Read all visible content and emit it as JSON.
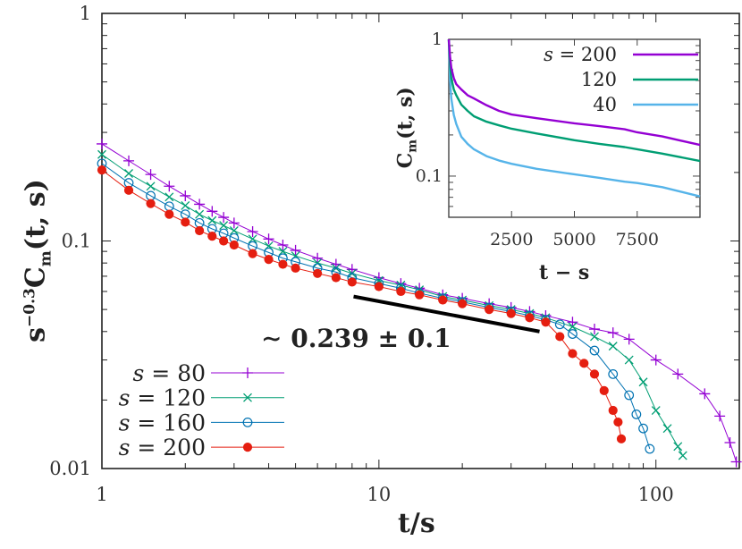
{
  "chart_data": [
    {
      "type": "scatter",
      "xlabel": "t/s",
      "ylabel_base": "s",
      "ylabel_exp": "−0.3",
      "ylabel_main": "C",
      "ylabel_sub": "m",
      "ylabel_args": "(t, s)",
      "x_scale": "log",
      "y_scale": "log",
      "xlim": [
        1,
        200
      ],
      "ylim": [
        0.01,
        1
      ],
      "x_ticks": [
        "1",
        "10",
        "100"
      ],
      "y_ticks": [
        "0.01",
        "0.1",
        "1"
      ],
      "legend_position": "bottom-left",
      "annotation": "∼ 0.239 ± 0.1",
      "fit_line": {
        "x": [
          8.1,
          38
        ],
        "y": [
          0.057,
          0.04
        ],
        "color": "#000000"
      },
      "series": [
        {
          "name": "s = 80",
          "label_var": "s",
          "label_val": "80",
          "color": "#9400D3",
          "marker": "plus",
          "x": [
            1,
            1.25,
            1.5,
            1.75,
            2,
            2.25,
            2.5,
            2.75,
            3,
            3.5,
            4,
            4.5,
            5,
            6,
            7,
            8,
            10,
            12,
            14,
            17,
            20,
            25,
            30,
            35,
            40,
            50,
            60,
            70,
            80,
            100,
            120,
            150,
            170,
            185,
            195
          ],
          "y": [
            0.267,
            0.225,
            0.196,
            0.174,
            0.158,
            0.145,
            0.135,
            0.127,
            0.12,
            0.11,
            0.102,
            0.096,
            0.091,
            0.084,
            0.079,
            0.075,
            0.069,
            0.065,
            0.062,
            0.058,
            0.056,
            0.053,
            0.051,
            0.049,
            0.047,
            0.044,
            0.041,
            0.0395,
            0.037,
            0.03,
            0.026,
            0.0213,
            0.017,
            0.013,
            0.0107
          ]
        },
        {
          "name": "s = 120",
          "label_var": "s",
          "label_val": "120",
          "color": "#009E73",
          "marker": "cross",
          "x": [
            1,
            1.25,
            1.5,
            1.75,
            2,
            2.25,
            2.5,
            2.75,
            3,
            3.5,
            4,
            4.5,
            5,
            6,
            7,
            8,
            10,
            12,
            14,
            17,
            20,
            25,
            30,
            35,
            40,
            50,
            60,
            70,
            80,
            90,
            100,
            110,
            120,
            125
          ],
          "y": [
            0.24,
            0.198,
            0.174,
            0.156,
            0.143,
            0.131,
            0.123,
            0.117,
            0.111,
            0.102,
            0.095,
            0.09,
            0.086,
            0.08,
            0.076,
            0.072,
            0.067,
            0.064,
            0.061,
            0.057,
            0.055,
            0.052,
            0.05,
            0.048,
            0.046,
            0.042,
            0.038,
            0.0345,
            0.03,
            0.024,
            0.018,
            0.015,
            0.0125,
            0.0114
          ]
        },
        {
          "name": "s = 160",
          "label_var": "s",
          "label_val": "160",
          "color": "#0072B2",
          "marker": "circle",
          "x": [
            1,
            1.25,
            1.5,
            1.75,
            2,
            2.25,
            2.5,
            2.75,
            3,
            3.5,
            4,
            4.5,
            5,
            6,
            7,
            8,
            10,
            12,
            14,
            17,
            20,
            25,
            30,
            35,
            40,
            45,
            50,
            60,
            70,
            80,
            85,
            90,
            95
          ],
          "y": [
            0.219,
            0.18,
            0.158,
            0.142,
            0.131,
            0.12,
            0.113,
            0.108,
            0.103,
            0.095,
            0.089,
            0.084,
            0.081,
            0.076,
            0.073,
            0.069,
            0.065,
            0.062,
            0.059,
            0.056,
            0.054,
            0.051,
            0.049,
            0.047,
            0.045,
            0.043,
            0.039,
            0.033,
            0.026,
            0.021,
            0.0173,
            0.015,
            0.0122
          ]
        },
        {
          "name": "s = 200",
          "label_var": "s",
          "label_val": "200",
          "color": "#E51E10",
          "marker": "filled-circle",
          "x": [
            1,
            1.25,
            1.5,
            1.75,
            2,
            2.25,
            2.5,
            2.75,
            3,
            3.5,
            4,
            4.5,
            5,
            6,
            7,
            8,
            10,
            12,
            14,
            17,
            20,
            25,
            30,
            35,
            40,
            45,
            50,
            55,
            60,
            65,
            70,
            73,
            75
          ],
          "y": [
            0.205,
            0.167,
            0.146,
            0.131,
            0.121,
            0.111,
            0.105,
            0.1,
            0.096,
            0.088,
            0.083,
            0.079,
            0.076,
            0.072,
            0.069,
            0.066,
            0.063,
            0.06,
            0.058,
            0.055,
            0.053,
            0.05,
            0.048,
            0.046,
            0.044,
            0.038,
            0.032,
            0.029,
            0.026,
            0.022,
            0.018,
            0.016,
            0.0135
          ]
        }
      ]
    },
    {
      "type": "line",
      "xlabel": "t − s",
      "ylabel_main": "C",
      "ylabel_sub": "m",
      "ylabel_args": "(t, s)",
      "x_scale": "linear",
      "y_scale": "log",
      "xlim": [
        0,
        10000
      ],
      "ylim": [
        0.05,
        1
      ],
      "x_ticks": [
        "2500",
        "5000",
        "7500"
      ],
      "y_ticks": [
        "0.1",
        "1"
      ],
      "legend_position": "top-right",
      "x": [
        0,
        50,
        100,
        200,
        300,
        500,
        750,
        1000,
        1500,
        2000,
        2500,
        3500,
        5000,
        6000,
        7000,
        7500,
        8500,
        10000
      ],
      "series": [
        {
          "name": "s = 200",
          "label_var": "s",
          "label_val": "200",
          "color": "#9400D3",
          "y": [
            1,
            0.75,
            0.62,
            0.52,
            0.47,
            0.43,
            0.39,
            0.37,
            0.33,
            0.3,
            0.282,
            0.265,
            0.243,
            0.232,
            0.22,
            0.209,
            0.195,
            0.169
          ]
        },
        {
          "name": "120",
          "label_var": "",
          "label_val": "120",
          "color": "#009E73",
          "y": [
            1,
            0.65,
            0.52,
            0.43,
            0.39,
            0.333,
            0.3,
            0.274,
            0.25,
            0.235,
            0.222,
            0.205,
            0.183,
            0.172,
            0.163,
            0.157,
            0.146,
            0.129
          ]
        },
        {
          "name": "40",
          "label_var": "",
          "label_val": "40",
          "color": "#56B4E9",
          "y": [
            1,
            0.5,
            0.37,
            0.28,
            0.24,
            0.194,
            0.172,
            0.157,
            0.14,
            0.13,
            0.123,
            0.113,
            0.103,
            0.097,
            0.091,
            0.089,
            0.083,
            0.071
          ]
        }
      ]
    }
  ]
}
